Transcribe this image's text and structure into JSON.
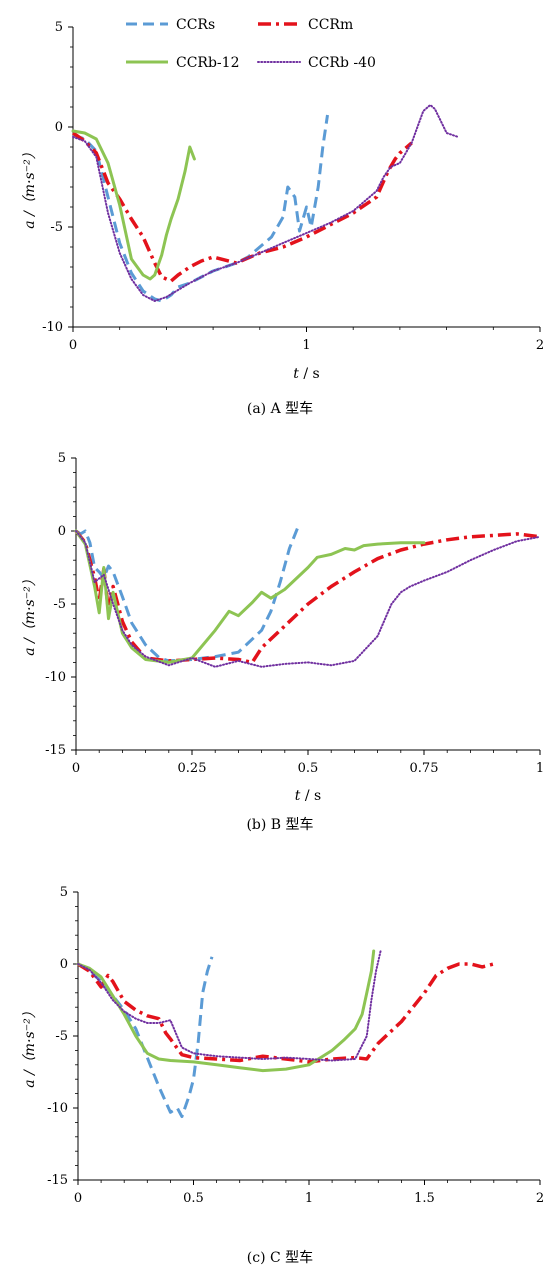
{
  "legend": {
    "ccrs": "CCRs",
    "ccrm": "CCRm",
    "ccrb12": "CCRb-12",
    "ccrb40": "CCRb -40"
  },
  "styles": {
    "ccrs": {
      "color": "#5b9bd5",
      "dash": "long-dash"
    },
    "ccrm": {
      "color": "#e3121b",
      "dash": "long-dash-dot"
    },
    "ccrb12": {
      "color": "#8dc453",
      "dash": "solid"
    },
    "ccrb40": {
      "color": "#7030a0",
      "dash": "round-dot"
    }
  },
  "chart_data": [
    {
      "type": "line",
      "caption": "(a)  A 型车",
      "xlabel_var": "t",
      "xlabel_unit": "/ s",
      "ylabel": "a /（m·s⁻²）",
      "xlim": [
        0,
        2
      ],
      "ylim": [
        -10,
        5
      ],
      "xticks": [
        "0",
        "1",
        "2"
      ],
      "xtick_values": [
        0,
        1,
        2
      ],
      "yticks": [
        "5",
        "0",
        "-5",
        "-10"
      ],
      "ytick_values": [
        5,
        0,
        -5,
        -10
      ],
      "series": [
        {
          "key": "ccrs",
          "name": "CCRs",
          "x": [
            0,
            0.05,
            0.1,
            0.15,
            0.2,
            0.25,
            0.3,
            0.35,
            0.38,
            0.42,
            0.45,
            0.5,
            0.55,
            0.6,
            0.65,
            0.7,
            0.75,
            0.8,
            0.85,
            0.9,
            0.92,
            0.95,
            0.97,
            1.0,
            1.02,
            1.05,
            1.07,
            1.09
          ],
          "y": [
            -0.4,
            -0.6,
            -1.2,
            -3.5,
            -5.8,
            -7.3,
            -8.2,
            -8.6,
            -8.7,
            -8.4,
            -8.0,
            -7.8,
            -7.5,
            -7.2,
            -7.0,
            -6.8,
            -6.5,
            -6.0,
            -5.5,
            -4.5,
            -3.0,
            -3.5,
            -5.2,
            -4.0,
            -5.0,
            -3.0,
            -1.0,
            0.6
          ]
        },
        {
          "key": "ccrm",
          "name": "CCRm",
          "x": [
            0,
            0.05,
            0.1,
            0.15,
            0.2,
            0.25,
            0.3,
            0.35,
            0.38,
            0.42,
            0.45,
            0.5,
            0.55,
            0.6,
            0.7,
            0.8,
            0.9,
            1.0,
            1.1,
            1.2,
            1.3,
            1.35,
            1.38,
            1.4,
            1.45
          ],
          "y": [
            -0.3,
            -0.7,
            -1.3,
            -2.8,
            -3.6,
            -4.6,
            -5.5,
            -6.8,
            -7.5,
            -7.7,
            -7.4,
            -7.0,
            -6.7,
            -6.5,
            -6.8,
            -6.3,
            -6.0,
            -5.5,
            -4.9,
            -4.3,
            -3.5,
            -2.2,
            -1.6,
            -1.3,
            -0.8
          ]
        },
        {
          "key": "ccrb12",
          "name": "CCRb-12",
          "x": [
            0,
            0.05,
            0.1,
            0.15,
            0.2,
            0.25,
            0.3,
            0.33,
            0.35,
            0.38,
            0.4,
            0.42,
            0.45,
            0.48,
            0.5,
            0.52
          ],
          "y": [
            -0.2,
            -0.3,
            -0.6,
            -1.8,
            -3.9,
            -6.6,
            -7.4,
            -7.6,
            -7.4,
            -6.4,
            -5.4,
            -4.6,
            -3.6,
            -2.2,
            -1.0,
            -1.6
          ]
        },
        {
          "key": "ccrb40",
          "name": "CCRb -40",
          "x": [
            0,
            0.05,
            0.1,
            0.15,
            0.2,
            0.25,
            0.3,
            0.35,
            0.4,
            0.5,
            0.6,
            0.7,
            0.8,
            0.9,
            1.0,
            1.1,
            1.2,
            1.3,
            1.33,
            1.36,
            1.4,
            1.45,
            1.5,
            1.53,
            1.55,
            1.6,
            1.65
          ],
          "y": [
            -0.5,
            -0.7,
            -1.5,
            -4.3,
            -6.3,
            -7.6,
            -8.4,
            -8.7,
            -8.5,
            -7.8,
            -7.2,
            -6.8,
            -6.3,
            -5.8,
            -5.3,
            -4.8,
            -4.2,
            -3.2,
            -2.5,
            -2.0,
            -1.8,
            -0.8,
            0.8,
            1.1,
            0.9,
            -0.3,
            -0.5
          ]
        }
      ]
    },
    {
      "type": "line",
      "caption": "(b)  B 型车",
      "xlabel_var": "t",
      "xlabel_unit": "/ s",
      "ylabel": "a /（m·s⁻²）",
      "xlim": [
        0,
        1
      ],
      "ylim": [
        -15,
        5
      ],
      "xticks": [
        "0",
        "0.25",
        "0.5",
        "0.75",
        "1"
      ],
      "xtick_values": [
        0,
        0.25,
        0.5,
        0.75,
        1
      ],
      "yticks": [
        "5",
        "0",
        "-5",
        "-10",
        "-15"
      ],
      "ytick_values": [
        5,
        0,
        -5,
        -10,
        -15
      ],
      "series": [
        {
          "key": "ccrs",
          "name": "CCRs",
          "x": [
            0,
            0.01,
            0.02,
            0.03,
            0.04,
            0.05,
            0.06,
            0.07,
            0.08,
            0.1,
            0.12,
            0.15,
            0.18,
            0.2,
            0.25,
            0.3,
            0.35,
            0.4,
            0.42,
            0.44,
            0.46,
            0.48
          ],
          "y": [
            0,
            -0.2,
            0,
            -0.8,
            -2.5,
            -2.8,
            -3.2,
            -2.4,
            -2.8,
            -4.5,
            -6.3,
            -7.8,
            -8.7,
            -8.9,
            -8.8,
            -8.6,
            -8.3,
            -6.8,
            -5.5,
            -3.5,
            -1.2,
            0.4
          ]
        },
        {
          "key": "ccrm",
          "name": "CCRm",
          "x": [
            0,
            0.02,
            0.04,
            0.05,
            0.06,
            0.07,
            0.08,
            0.1,
            0.12,
            0.15,
            0.2,
            0.25,
            0.3,
            0.35,
            0.38,
            0.4,
            0.45,
            0.5,
            0.55,
            0.6,
            0.65,
            0.7,
            0.75,
            0.8,
            0.85,
            0.9,
            0.95,
            1.0
          ],
          "y": [
            0,
            -0.8,
            -3.2,
            -4.8,
            -2.6,
            -5.5,
            -3.8,
            -6.2,
            -7.6,
            -8.7,
            -8.9,
            -8.8,
            -8.7,
            -8.8,
            -9.0,
            -8.0,
            -6.5,
            -5.0,
            -3.8,
            -2.8,
            -1.9,
            -1.3,
            -0.9,
            -0.6,
            -0.4,
            -0.3,
            -0.2,
            -0.4
          ]
        },
        {
          "key": "ccrb12",
          "name": "CCRb-12",
          "x": [
            0,
            0.02,
            0.04,
            0.05,
            0.06,
            0.07,
            0.08,
            0.1,
            0.12,
            0.15,
            0.2,
            0.25,
            0.3,
            0.33,
            0.35,
            0.38,
            0.4,
            0.42,
            0.45,
            0.5,
            0.52,
            0.55,
            0.58,
            0.6,
            0.62,
            0.65,
            0.7,
            0.75
          ],
          "y": [
            0,
            -0.9,
            -3.8,
            -5.6,
            -2.5,
            -6.0,
            -4.2,
            -7.0,
            -8.0,
            -8.8,
            -9.0,
            -8.7,
            -6.8,
            -5.5,
            -5.8,
            -4.9,
            -4.2,
            -4.6,
            -4.0,
            -2.5,
            -1.8,
            -1.6,
            -1.2,
            -1.3,
            -1.0,
            -0.9,
            -0.8,
            -0.8
          ]
        },
        {
          "key": "ccrb40",
          "name": "CCRb -40",
          "x": [
            0,
            0.02,
            0.04,
            0.06,
            0.08,
            0.1,
            0.12,
            0.15,
            0.2,
            0.25,
            0.3,
            0.35,
            0.4,
            0.45,
            0.5,
            0.55,
            0.6,
            0.65,
            0.68,
            0.7,
            0.72,
            0.75,
            0.8,
            0.85,
            0.9,
            0.95,
            1.0
          ],
          "y": [
            0,
            -0.8,
            -3.5,
            -3.0,
            -5.0,
            -6.8,
            -7.8,
            -8.6,
            -9.2,
            -8.7,
            -9.3,
            -8.9,
            -9.3,
            -9.1,
            -9.0,
            -9.2,
            -8.9,
            -7.2,
            -5.0,
            -4.2,
            -3.8,
            -3.4,
            -2.8,
            -2.0,
            -1.3,
            -0.7,
            -0.4
          ]
        }
      ]
    },
    {
      "type": "line",
      "caption": "(c)  C 型车",
      "xlabel_var": "",
      "xlabel_unit": "",
      "ylabel": "a /（m·s⁻²）",
      "xlim": [
        0,
        2
      ],
      "ylim": [
        -15,
        5
      ],
      "xticks": [
        "0",
        "0.5",
        "1",
        "1.5",
        "2"
      ],
      "xtick_values": [
        0,
        0.5,
        1,
        1.5,
        2
      ],
      "yticks": [
        "5",
        "0",
        "-5",
        "-10",
        "-15"
      ],
      "ytick_values": [
        5,
        0,
        -5,
        -10,
        -15
      ],
      "series": [
        {
          "key": "ccrs",
          "name": "CCRs",
          "x": [
            0,
            0.05,
            0.1,
            0.15,
            0.2,
            0.25,
            0.3,
            0.35,
            0.4,
            0.43,
            0.45,
            0.48,
            0.5,
            0.52,
            0.54,
            0.56,
            0.58
          ],
          "y": [
            0,
            -0.5,
            -1.2,
            -2.2,
            -3.2,
            -4.5,
            -6.5,
            -8.5,
            -10.3,
            -10.0,
            -10.6,
            -9.2,
            -8.0,
            -5.5,
            -2.0,
            -0.5,
            0.5
          ]
        },
        {
          "key": "ccrm",
          "name": "CCRm",
          "x": [
            0,
            0.05,
            0.1,
            0.13,
            0.15,
            0.2,
            0.25,
            0.3,
            0.35,
            0.38,
            0.4,
            0.45,
            0.5,
            0.6,
            0.7,
            0.8,
            0.9,
            1.0,
            1.1,
            1.2,
            1.25,
            1.3,
            1.4,
            1.5,
            1.55,
            1.6,
            1.65,
            1.7,
            1.75,
            1.8
          ],
          "y": [
            0,
            -0.5,
            -1.6,
            -0.8,
            -1.2,
            -2.6,
            -3.2,
            -3.6,
            -3.8,
            -4.8,
            -5.2,
            -6.3,
            -6.5,
            -6.6,
            -6.7,
            -6.4,
            -6.6,
            -6.8,
            -6.6,
            -6.5,
            -6.6,
            -5.5,
            -4.0,
            -2.0,
            -0.8,
            -0.3,
            0,
            0,
            -0.2,
            0
          ]
        },
        {
          "key": "ccrb12",
          "name": "CCRb-12",
          "x": [
            0,
            0.05,
            0.1,
            0.15,
            0.2,
            0.25,
            0.3,
            0.35,
            0.4,
            0.5,
            0.6,
            0.7,
            0.8,
            0.9,
            1.0,
            1.05,
            1.1,
            1.15,
            1.2,
            1.23,
            1.25,
            1.27,
            1.28
          ],
          "y": [
            0,
            -0.3,
            -0.9,
            -2.2,
            -3.5,
            -5.0,
            -6.2,
            -6.6,
            -6.7,
            -6.8,
            -7.0,
            -7.2,
            -7.4,
            -7.3,
            -7.0,
            -6.5,
            -6.0,
            -5.3,
            -4.5,
            -3.5,
            -2.0,
            -0.5,
            0.9
          ]
        },
        {
          "key": "ccrb40",
          "name": "CCRb -40",
          "x": [
            0,
            0.05,
            0.1,
            0.15,
            0.2,
            0.25,
            0.3,
            0.35,
            0.4,
            0.45,
            0.5,
            0.6,
            0.7,
            0.8,
            0.9,
            1.0,
            1.1,
            1.2,
            1.25,
            1.27,
            1.29,
            1.31
          ],
          "y": [
            0,
            -0.4,
            -1.3,
            -2.5,
            -3.3,
            -3.8,
            -4.1,
            -4.1,
            -3.9,
            -5.8,
            -6.2,
            -6.4,
            -6.5,
            -6.6,
            -6.5,
            -6.6,
            -6.7,
            -6.6,
            -5.0,
            -2.5,
            -0.5,
            0.9
          ]
        }
      ]
    }
  ]
}
